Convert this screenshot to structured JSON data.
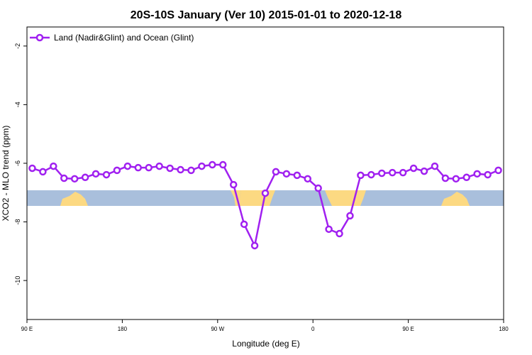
{
  "chart_data": {
    "type": "line",
    "title": "20S-10S January (Ver 10)   2015-01-01 to 2020-12-18",
    "x_label": "Longitude (deg E)",
    "y_label": "XCO2 - MLO trend (ppm)",
    "x": [
      95,
      105,
      115,
      125,
      135,
      145,
      155,
      165,
      175,
      185,
      195,
      205,
      215,
      225,
      235,
      245,
      255,
      265,
      275,
      285,
      295,
      305,
      315,
      325,
      335,
      345,
      355,
      365,
      375,
      385,
      395,
      405,
      415,
      425,
      435,
      445,
      455,
      465,
      475,
      485,
      495,
      505,
      515,
      525,
      535
    ],
    "series": [
      {
        "name": "Land (Nadir&Glint) and Ocean (Glint)",
        "color": "#a020f0",
        "values": [
          -6.17,
          -6.29,
          -6.1,
          -6.51,
          -6.53,
          -6.48,
          -6.36,
          -6.39,
          -6.24,
          -6.1,
          -6.15,
          -6.15,
          -6.1,
          -6.17,
          -6.22,
          -6.24,
          -6.1,
          -6.05,
          -6.05,
          -6.73,
          -8.08,
          -8.81,
          -7.02,
          -6.29,
          -6.36,
          -6.41,
          -6.53,
          -6.85,
          -8.25,
          -8.4,
          -7.79,
          -6.41,
          -6.39,
          -6.34,
          -6.32,
          -6.32,
          -6.17,
          -6.27,
          -6.1,
          -6.51,
          -6.53,
          -6.48,
          -6.36,
          -6.39,
          -6.24
        ]
      }
    ],
    "xlim": [
      90,
      540
    ],
    "xticks": [
      {
        "value": 90,
        "label": "90 E"
      },
      180,
      {
        "value": 270,
        "label": "90 W"
      },
      {
        "value": 360,
        "label": "0"
      },
      {
        "value": 450,
        "label": "90 E"
      },
      {
        "value": 540,
        "label": "180"
      }
    ],
    "ylim": [
      -11.33,
      -1.35
    ],
    "yticks": [
      -10,
      -8,
      -6,
      -4,
      -2
    ],
    "legend": "top-left"
  }
}
